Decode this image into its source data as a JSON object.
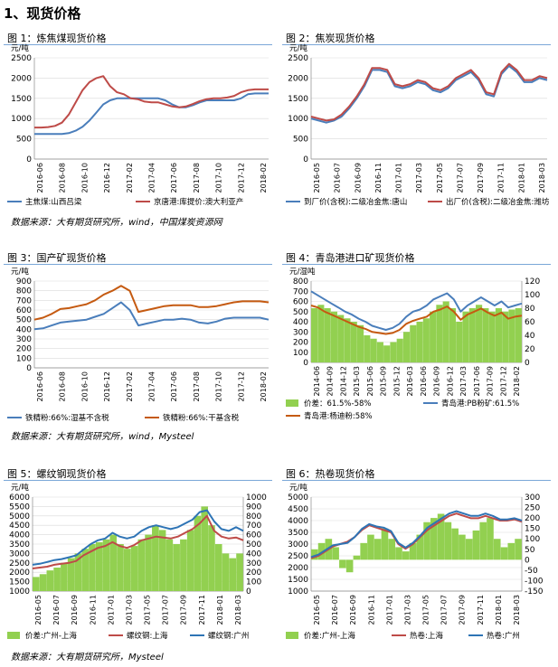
{
  "page": {
    "heading": "1、现货价格",
    "sources": [
      "数据来源：大有期货研究所，wind，中国煤炭资源网",
      "数据来源：大有期货研究所，wind，Mysteel",
      "数据来源：大有期货研究所，Mysteel"
    ]
  },
  "chart_data": [
    {
      "id": "fig1",
      "type": "line",
      "title": "图 1：炼焦煤现货价格",
      "ylabel": "元/吨",
      "ylim": [
        0,
        2500
      ],
      "yticks": [
        0,
        500,
        1000,
        1500,
        2000,
        2500
      ],
      "xlabels": [
        "2016-06",
        "2016-08",
        "2016-10",
        "2016-12",
        "2017-02",
        "2017-04",
        "2017-06",
        "2017-08",
        "2017-10",
        "2017-12",
        "2018-02"
      ],
      "series": [
        {
          "name": "主焦煤:山西吕梁",
          "color": "#4a7ebb",
          "values": [
            620,
            620,
            620,
            620,
            620,
            640,
            700,
            800,
            950,
            1150,
            1350,
            1450,
            1500,
            1500,
            1500,
            1500,
            1500,
            1500,
            1500,
            1450,
            1350,
            1280,
            1280,
            1330,
            1400,
            1450,
            1450,
            1450,
            1450,
            1450,
            1500,
            1600,
            1620,
            1620,
            1620
          ]
        },
        {
          "name": "京唐港:库提价:澳大利亚产",
          "color": "#be4b48",
          "values": [
            780,
            780,
            790,
            820,
            900,
            1100,
            1400,
            1700,
            1900,
            2000,
            2050,
            1800,
            1650,
            1600,
            1500,
            1480,
            1420,
            1400,
            1400,
            1350,
            1300,
            1280,
            1300,
            1360,
            1430,
            1480,
            1500,
            1500,
            1520,
            1560,
            1650,
            1700,
            1720,
            1720,
            1720
          ]
        }
      ]
    },
    {
      "id": "fig2",
      "type": "line",
      "title": "图 2：焦炭现货价格",
      "ylabel": "元/吨",
      "ylim": [
        0,
        2500
      ],
      "yticks": [
        0,
        500,
        1000,
        1500,
        2000,
        2500
      ],
      "xlabels": [
        "2016-05",
        "2016-07",
        "2016-09",
        "2016-11",
        "2017-01",
        "2017-03",
        "2017-05",
        "2017-07",
        "2017-09",
        "2017-11",
        "2018-01",
        "2018-03"
      ],
      "series": [
        {
          "name": "到厂价(含税):二级冶金焦:唐山",
          "color": "#4a7ebb",
          "values": [
            1000,
            950,
            900,
            950,
            1050,
            1250,
            1500,
            1800,
            2200,
            2200,
            2150,
            1800,
            1750,
            1800,
            1900,
            1850,
            1700,
            1650,
            1750,
            1950,
            2050,
            2150,
            1950,
            1600,
            1550,
            2100,
            2300,
            2150,
            1900,
            1900,
            2000,
            1950
          ]
        },
        {
          "name": "出厂价(含税):二级冶金焦:潍坊",
          "color": "#be4b48",
          "values": [
            1050,
            1000,
            950,
            980,
            1100,
            1300,
            1550,
            1850,
            2250,
            2250,
            2200,
            1850,
            1800,
            1850,
            1950,
            1900,
            1750,
            1700,
            1800,
            2000,
            2100,
            2200,
            2000,
            1650,
            1600,
            2150,
            2350,
            2200,
            1950,
            1950,
            2050,
            2000
          ]
        }
      ]
    },
    {
      "id": "fig3",
      "type": "line",
      "title": "图 3：国产矿现货价格",
      "ylabel": "元/吨",
      "ylim": [
        0,
        900
      ],
      "yticks": [
        0,
        100,
        200,
        300,
        400,
        500,
        600,
        700,
        800,
        900
      ],
      "xlabels": [
        "2016-06",
        "2016-08",
        "2016-10",
        "2016-12",
        "2017-02",
        "2017-04",
        "2017-06",
        "2017-08",
        "2017-10",
        "2017-12",
        "2018-02"
      ],
      "series": [
        {
          "name": "铁精粉:66%:湿基不含税",
          "color": "#4a7ebb",
          "values": [
            400,
            410,
            440,
            470,
            480,
            490,
            500,
            530,
            560,
            620,
            680,
            600,
            440,
            460,
            480,
            500,
            500,
            510,
            500,
            470,
            460,
            480,
            510,
            520,
            520,
            520,
            520,
            500
          ]
        },
        {
          "name": "铁精粉:66%:干基含税",
          "color": "#c55a11",
          "values": [
            500,
            520,
            560,
            610,
            620,
            640,
            660,
            700,
            760,
            800,
            850,
            800,
            580,
            600,
            620,
            640,
            650,
            650,
            650,
            630,
            630,
            640,
            660,
            680,
            690,
            690,
            690,
            680
          ]
        }
      ]
    },
    {
      "id": "fig4",
      "type": "line",
      "title": "图 4：青岛港进口矿现货价格",
      "ylabel": "元/湿吨",
      "ylim": [
        0,
        800
      ],
      "y2lim": [
        0,
        120
      ],
      "yticks": [
        0,
        100,
        200,
        300,
        400,
        500,
        600,
        700,
        800
      ],
      "y2ticks": [
        0,
        20,
        40,
        60,
        80,
        100,
        120
      ],
      "xlabels": [
        "2014-06",
        "2014-09",
        "2014-12",
        "2015-03",
        "2015-06",
        "2015-09",
        "2015-12",
        "2016-03",
        "2016-06",
        "2016-09",
        "2016-12",
        "2017-03",
        "2017-06",
        "2017-09",
        "2017-12",
        "2018-02"
      ],
      "bar_series": {
        "name": "价差：61.5%-58%",
        "color": "#92d050",
        "values": [
          80,
          85,
          80,
          75,
          70,
          65,
          60,
          55,
          40,
          35,
          30,
          25,
          30,
          35,
          45,
          55,
          60,
          65,
          75,
          85,
          90,
          80,
          60,
          75,
          80,
          85,
          80,
          75,
          80,
          75,
          78,
          80
        ]
      },
      "series": [
        {
          "name": "青岛港:PB粉矿:61.5%",
          "color": "#4a7ebb",
          "values": [
            700,
            660,
            620,
            580,
            540,
            500,
            470,
            430,
            400,
            360,
            340,
            320,
            340,
            380,
            450,
            500,
            520,
            560,
            620,
            650,
            680,
            620,
            500,
            560,
            600,
            640,
            600,
            560,
            600,
            540,
            560,
            580
          ]
        },
        {
          "name": "青岛港:杨迪粉:58%",
          "color": "#c55a11",
          "values": [
            560,
            540,
            500,
            470,
            440,
            410,
            380,
            350,
            330,
            300,
            290,
            280,
            290,
            320,
            380,
            410,
            430,
            450,
            500,
            520,
            550,
            500,
            420,
            470,
            500,
            530,
            490,
            460,
            490,
            430,
            450,
            460
          ]
        }
      ]
    },
    {
      "id": "fig5",
      "type": "line",
      "title": "图 5：螺纹钢现货价格",
      "ylabel": "元/吨",
      "ylim": [
        1000,
        6000
      ],
      "y2lim": [
        0,
        1000
      ],
      "yticks": [
        1000,
        1500,
        2000,
        2500,
        3000,
        3500,
        4000,
        4500,
        5000,
        5500,
        6000
      ],
      "y2ticks": [
        0,
        100,
        200,
        300,
        400,
        500,
        600,
        700,
        800,
        900,
        1000
      ],
      "xlabels": [
        "2016-05",
        "2016-07",
        "2016-09",
        "2016-11",
        "2017-01",
        "2017-03",
        "2017-05",
        "2017-07",
        "2017-09",
        "2017-11",
        "2018-01",
        "2018-03"
      ],
      "bar_series": {
        "name": "价差:广州-上海",
        "color": "#92d050",
        "values": [
          150,
          180,
          220,
          250,
          300,
          350,
          400,
          450,
          500,
          520,
          550,
          600,
          500,
          450,
          480,
          550,
          600,
          700,
          650,
          550,
          500,
          550,
          650,
          800,
          900,
          700,
          500,
          400,
          350,
          400
        ]
      },
      "series": [
        {
          "name": "螺纹钢:上海",
          "color": "#be4b48",
          "values": [
            2200,
            2250,
            2300,
            2400,
            2450,
            2500,
            2600,
            2900,
            3100,
            3300,
            3400,
            3600,
            3400,
            3300,
            3450,
            3700,
            3800,
            3900,
            3850,
            3800,
            3900,
            4100,
            4300,
            4600,
            5000,
            4200,
            3900,
            3800,
            3850,
            3700
          ]
        },
        {
          "name": "螺纹钢:广州",
          "color": "#2e74b5",
          "values": [
            2400,
            2450,
            2550,
            2650,
            2700,
            2800,
            2900,
            3200,
            3500,
            3700,
            3800,
            4100,
            3900,
            3800,
            3900,
            4200,
            4400,
            4500,
            4400,
            4300,
            4400,
            4600,
            4800,
            5200,
            5300,
            4700,
            4300,
            4200,
            4400,
            4200
          ]
        }
      ]
    },
    {
      "id": "fig6",
      "type": "line",
      "title": "图 6：热卷现货价格",
      "ylabel": "元/吨",
      "ylim": [
        1000,
        5000
      ],
      "y2lim": [
        -150,
        300
      ],
      "yticks": [
        1000,
        1500,
        2000,
        2500,
        3000,
        3500,
        4000,
        4500,
        5000
      ],
      "y2ticks": [
        -150,
        -100,
        -50,
        0,
        50,
        100,
        150,
        200,
        250,
        300
      ],
      "xlabels": [
        "2016-05",
        "2016-07",
        "2016-09",
        "2016-11",
        "2017-01",
        "2017-03",
        "2017-05",
        "2017-07",
        "2017-09",
        "2017-11",
        "2018-01",
        "2018-03"
      ],
      "bar_series": {
        "name": "价差:广州-上海",
        "color": "#92d050",
        "values": [
          50,
          80,
          100,
          60,
          -40,
          -60,
          20,
          80,
          120,
          100,
          150,
          100,
          60,
          40,
          80,
          120,
          180,
          200,
          220,
          180,
          150,
          120,
          100,
          140,
          180,
          200,
          100,
          60,
          80,
          100
        ]
      },
      "series": [
        {
          "name": "热卷:上海",
          "color": "#be4b48",
          "values": [
            2400,
            2500,
            2700,
            2900,
            3000,
            3100,
            3300,
            3600,
            3800,
            3700,
            3600,
            3500,
            3000,
            2800,
            3000,
            3300,
            3600,
            3800,
            4000,
            4200,
            4300,
            4200,
            4100,
            4100,
            4200,
            4100,
            4000,
            4000,
            4050,
            3950
          ]
        },
        {
          "name": "热卷:广州",
          "color": "#2e74b5",
          "values": [
            2450,
            2550,
            2750,
            2950,
            3000,
            3050,
            3300,
            3650,
            3850,
            3750,
            3700,
            3550,
            3050,
            2850,
            3050,
            3350,
            3700,
            3900,
            4100,
            4300,
            4400,
            4300,
            4200,
            4200,
            4300,
            4200,
            4050,
            4050,
            4100,
            4000
          ]
        }
      ]
    }
  ]
}
